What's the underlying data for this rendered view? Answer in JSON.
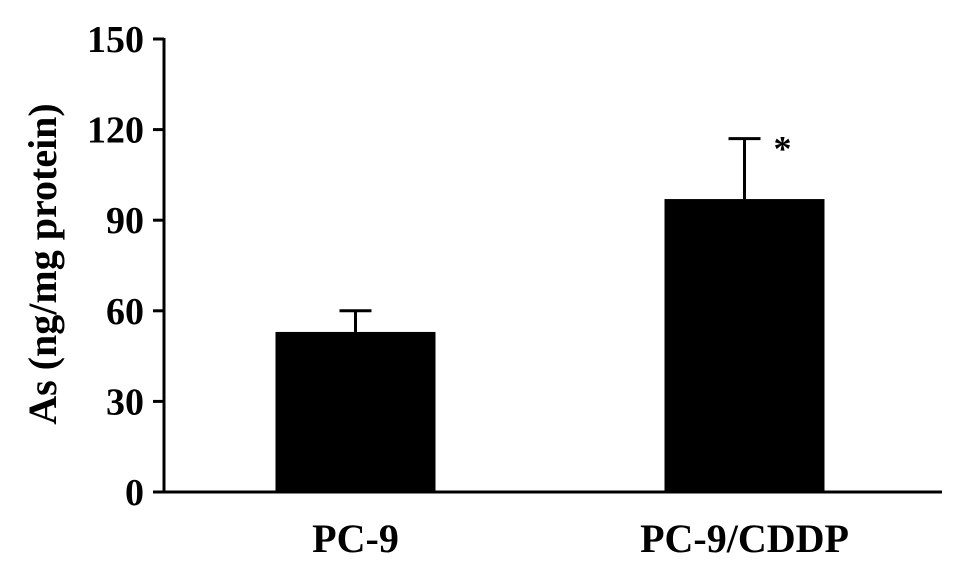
{
  "chart_data": {
    "type": "bar",
    "title": "",
    "xlabel": "",
    "ylabel": "As (ng/mg protein)",
    "ylim": [
      0,
      150
    ],
    "yticks": [
      "0",
      "30",
      "60",
      "90",
      "120",
      "150"
    ],
    "categories": [
      "PC-9",
      "PC-9/CDDP"
    ],
    "values": [
      53,
      97
    ],
    "errors": [
      7,
      20
    ],
    "annotations": [
      "",
      "*"
    ],
    "bar_color": "#000000",
    "grid": false,
    "legend": "none"
  }
}
